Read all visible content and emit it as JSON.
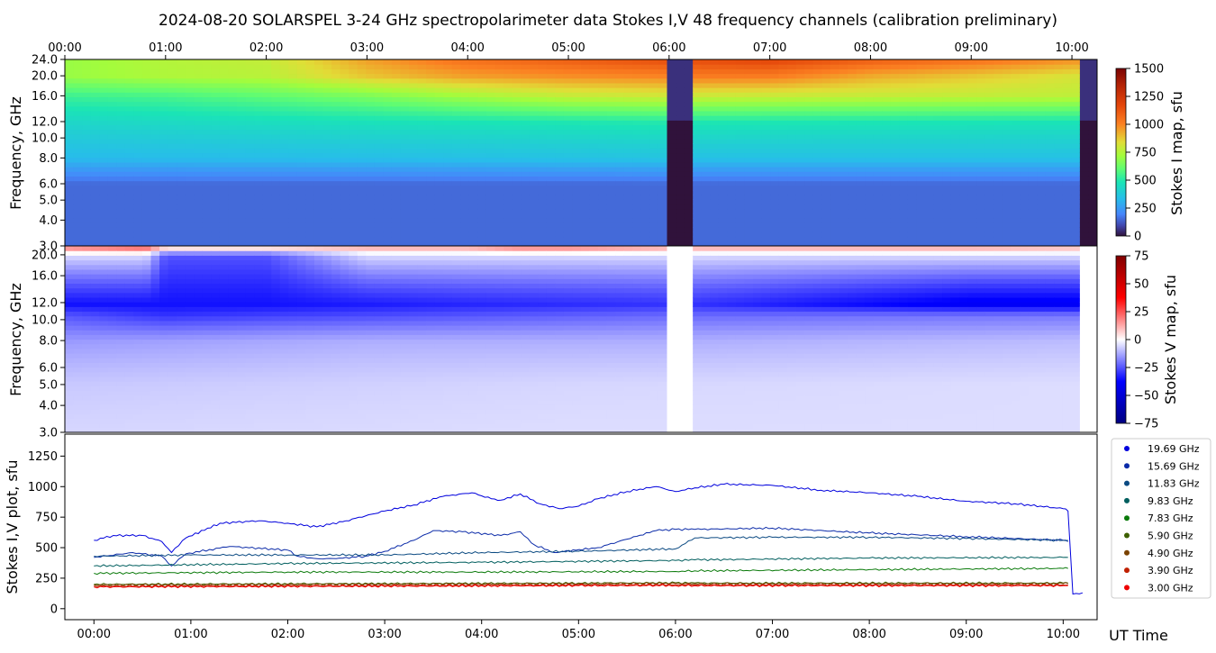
{
  "title": "2024-08-20  SOLARSPEL  3-24 GHz spectropolarimeter data   Stokes I,V   48 frequency channels   (calibration preliminary)",
  "x_axis": {
    "label": "UT Time",
    "ticks": [
      "00:00",
      "01:00",
      "02:00",
      "03:00",
      "04:00",
      "05:00",
      "06:00",
      "07:00",
      "08:00",
      "09:00",
      "10:00"
    ]
  },
  "panels": {
    "stokes_i": {
      "ylabel": "Frequency, GHz",
      "colorbar_label": "Stokes I map, sfu",
      "colorbar_ticks": [
        "1500",
        "1250",
        "1000",
        "750",
        "500",
        "250",
        "0"
      ]
    },
    "stokes_v": {
      "ylabel": "Frequency, GHz",
      "colorbar_label": "Stokes V map, sfu",
      "colorbar_ticks": [
        "75",
        "50",
        "25",
        "0",
        "−25",
        "−50",
        "−75"
      ]
    },
    "plot": {
      "ylabel": "Stokes I,V plot, sfu"
    }
  },
  "freq_ticks": [
    "24.0",
    "20.0",
    "16.0",
    "12.0",
    "10.0",
    "8.0",
    "6.0",
    "5.0",
    "4.0",
    "3.0"
  ],
  "freq_ticks_v": [
    "20.0",
    "16.0",
    "12.0",
    "10.0",
    "8.0",
    "6.0",
    "5.0",
    "4.0",
    "3.0"
  ],
  "legend": [
    {
      "label": "19.69 GHz",
      "color": "#0000dd"
    },
    {
      "label": "15.69 GHz",
      "color": "#0a2aa8"
    },
    {
      "label": "11.83 GHz",
      "color": "#0b4a82"
    },
    {
      "label": "9.83 GHz",
      "color": "#005e5e"
    },
    {
      "label": "7.83 GHz",
      "color": "#0a7a0a"
    },
    {
      "label": "5.90 GHz",
      "color": "#3e6000"
    },
    {
      "label": "4.90 GHz",
      "color": "#7a4200"
    },
    {
      "label": "3.90 GHz",
      "color": "#c02000"
    },
    {
      "label": "3.00 GHz",
      "color": "#ee0000"
    }
  ],
  "chart_data": [
    {
      "type": "heatmap",
      "title": "2024-08-20  SOLARSPEL  3-24 GHz spectropolarimeter data   Stokes I,V   48 frequency channels   (calibration preliminary)",
      "xlabel": "",
      "ylabel": "Frequency, GHz",
      "xlim": [
        0,
        10.25
      ],
      "ylim": [
        3.0,
        24.0
      ],
      "y_scale": "log",
      "color_label": "Stokes I map, sfu",
      "color_range": [
        0,
        1500
      ],
      "colormap": "turbo",
      "observing_gaps": [
        [
          6.0,
          6.2
        ],
        [
          10.05,
          10.25
        ]
      ],
      "series": [
        {
          "freq_ghz": 3.0,
          "time_h": [
            0,
            6,
            6.2,
            10
          ],
          "flux_sfu": [
            150,
            150,
            150,
            150
          ]
        },
        {
          "freq_ghz": 6.0,
          "time_h": [
            0,
            6,
            6.2,
            10
          ],
          "flux_sfu": [
            150,
            150,
            150,
            150
          ]
        },
        {
          "freq_ghz": 8.0,
          "time_h": [
            0,
            3,
            6,
            6.2,
            10
          ],
          "flux_sfu": [
            330,
            340,
            360,
            350,
            350
          ]
        },
        {
          "freq_ghz": 12.0,
          "time_h": [
            0,
            3,
            6,
            6.2,
            10
          ],
          "flux_sfu": [
            430,
            470,
            500,
            490,
            480
          ]
        },
        {
          "freq_ghz": 16.0,
          "time_h": [
            0,
            1,
            2,
            3,
            4,
            5,
            6,
            6.2,
            10
          ],
          "flux_sfu": [
            540,
            560,
            600,
            650,
            720,
            780,
            800,
            790,
            770
          ]
        },
        {
          "freq_ghz": 20.0,
          "time_h": [
            0,
            1,
            2,
            3,
            4,
            5,
            6,
            6.2,
            7,
            8,
            9,
            10
          ],
          "flux_sfu": [
            700,
            740,
            760,
            880,
            950,
            980,
            1000,
            1020,
            1020,
            930,
            880,
            820
          ]
        },
        {
          "freq_ghz": 24.0,
          "time_h": [
            0,
            1,
            2,
            3,
            4,
            5,
            6,
            6.2,
            7,
            8,
            9,
            10
          ],
          "flux_sfu": [
            700,
            750,
            780,
            950,
            1050,
            1100,
            1150,
            1150,
            1180,
            1100,
            1050,
            980
          ]
        }
      ]
    },
    {
      "type": "heatmap",
      "xlabel": "",
      "ylabel": "Frequency, GHz",
      "xlim": [
        0,
        10.25
      ],
      "ylim": [
        3.0,
        22.0
      ],
      "y_scale": "log",
      "color_label": "Stokes V map, sfu",
      "color_range": [
        -75,
        75
      ],
      "colormap": "seismic",
      "observing_gaps": [
        [
          6.0,
          6.2
        ],
        [
          10.05,
          10.25
        ]
      ],
      "series": [
        {
          "freq_ghz": 21.5,
          "time_h": [
            0,
            0.8,
            1,
            2,
            3,
            4,
            4.5,
            5,
            6,
            7,
            8,
            9,
            10
          ],
          "v_sfu": [
            15,
            20,
            5,
            5,
            10,
            10,
            15,
            15,
            10,
            10,
            10,
            10,
            8
          ]
        },
        {
          "freq_ghz": 20.0,
          "time_h": [
            0,
            0.8,
            1,
            2,
            3,
            4,
            5,
            6,
            10
          ],
          "v_sfu": [
            -5,
            -5,
            -25,
            -25,
            -5,
            -5,
            -5,
            -5,
            -5
          ]
        },
        {
          "freq_ghz": 11.83,
          "time_h": [
            0,
            2,
            4,
            6,
            6.2,
            9,
            10
          ],
          "v_sfu": [
            -35,
            -35,
            -32,
            -30,
            -30,
            -40,
            -40
          ]
        },
        {
          "freq_ghz": 10.5,
          "time_h": [
            0,
            1,
            2,
            4,
            6,
            10
          ],
          "v_sfu": [
            -25,
            -30,
            -28,
            -25,
            -22,
            -20
          ]
        },
        {
          "freq_ghz": 8.0,
          "time_h": [
            0,
            3,
            6,
            10
          ],
          "v_sfu": [
            -15,
            -12,
            -12,
            -10
          ]
        },
        {
          "freq_ghz": 5.0,
          "time_h": [
            0,
            5,
            10
          ],
          "v_sfu": [
            -8,
            -6,
            -5
          ]
        },
        {
          "freq_ghz": 3.0,
          "time_h": [
            0,
            5,
            10
          ],
          "v_sfu": [
            -6,
            -5,
            -5
          ]
        }
      ]
    },
    {
      "type": "line",
      "xlabel": "UT Time",
      "ylabel": "Stokes I,V plot, sfu",
      "xlim": [
        -0.3,
        10.35
      ],
      "ylim": [
        -90,
        1430
      ],
      "x_ticks": [
        "00:00",
        "01:00",
        "02:00",
        "03:00",
        "04:00",
        "05:00",
        "06:00",
        "07:00",
        "08:00",
        "09:00",
        "10:00"
      ],
      "y_ticks": [
        0,
        250,
        500,
        750,
        1000,
        1250
      ],
      "legend_position": "right, outside",
      "series": [
        {
          "name": "19.69 GHz",
          "x": [
            0,
            0.2,
            0.5,
            0.7,
            0.8,
            0.95,
            1.3,
            1.7,
            2.0,
            2.3,
            2.6,
            3.0,
            3.3,
            3.6,
            3.9,
            4.1,
            4.2,
            4.4,
            4.6,
            4.8,
            5.0,
            5.2,
            5.5,
            5.8,
            6.0,
            6.2,
            6.5,
            7.0,
            7.5,
            8.0,
            8.5,
            9.0,
            9.5,
            10.0,
            10.05,
            10.1,
            10.2
          ],
          "y": [
            560,
            600,
            600,
            550,
            460,
            580,
            700,
            720,
            700,
            670,
            720,
            800,
            850,
            920,
            950,
            900,
            890,
            940,
            860,
            820,
            840,
            900,
            960,
            1000,
            960,
            990,
            1020,
            1010,
            970,
            950,
            920,
            880,
            860,
            820,
            800,
            120,
            130
          ]
        },
        {
          "name": "15.69 GHz",
          "x": [
            0,
            0.4,
            0.7,
            0.8,
            0.95,
            1.4,
            2.0,
            2.1,
            2.3,
            2.5,
            2.8,
            3.0,
            3.3,
            3.5,
            3.8,
            4.2,
            4.4,
            4.55,
            4.75,
            5.2,
            5.5,
            5.8,
            6.0,
            6.2,
            7.0,
            8.0,
            9.0,
            10.0,
            10.05
          ],
          "y": [
            420,
            460,
            430,
            350,
            450,
            510,
            480,
            430,
            410,
            410,
            430,
            470,
            560,
            640,
            630,
            600,
            630,
            520,
            460,
            500,
            570,
            640,
            650,
            650,
            660,
            620,
            590,
            560,
            550
          ]
        },
        {
          "name": "11.83 GHz",
          "x": [
            0,
            1,
            2,
            3,
            4,
            5,
            6,
            6.2,
            7,
            8,
            9,
            10,
            10.05
          ],
          "y": [
            430,
            440,
            440,
            440,
            460,
            470,
            490,
            580,
            585,
            585,
            575,
            560,
            560
          ]
        },
        {
          "name": "9.83 GHz",
          "x": [
            0,
            2,
            4,
            6,
            6.2,
            8,
            10,
            10.05
          ],
          "y": [
            350,
            370,
            380,
            395,
            400,
            415,
            420,
            420
          ]
        },
        {
          "name": "7.83 GHz",
          "x": [
            0,
            2,
            4,
            6,
            6.2,
            8,
            10,
            10.05
          ],
          "y": [
            290,
            300,
            300,
            305,
            310,
            320,
            330,
            330
          ]
        },
        {
          "name": "5.90 GHz",
          "x": [
            0,
            5,
            6,
            6.2,
            10,
            10.05
          ],
          "y": [
            200,
            210,
            212,
            210,
            210,
            210
          ]
        },
        {
          "name": "4.90 GHz",
          "x": [
            0,
            5,
            6,
            6.2,
            10,
            10.05
          ],
          "y": [
            195,
            205,
            208,
            205,
            205,
            205
          ]
        },
        {
          "name": "3.90 GHz",
          "x": [
            0,
            5,
            6,
            6.2,
            10,
            10.05
          ],
          "y": [
            185,
            195,
            198,
            195,
            195,
            195
          ]
        },
        {
          "name": "3.00 GHz",
          "x": [
            0,
            5,
            6,
            6.2,
            10,
            10.05
          ],
          "y": [
            178,
            188,
            190,
            188,
            188,
            188
          ]
        }
      ]
    }
  ]
}
